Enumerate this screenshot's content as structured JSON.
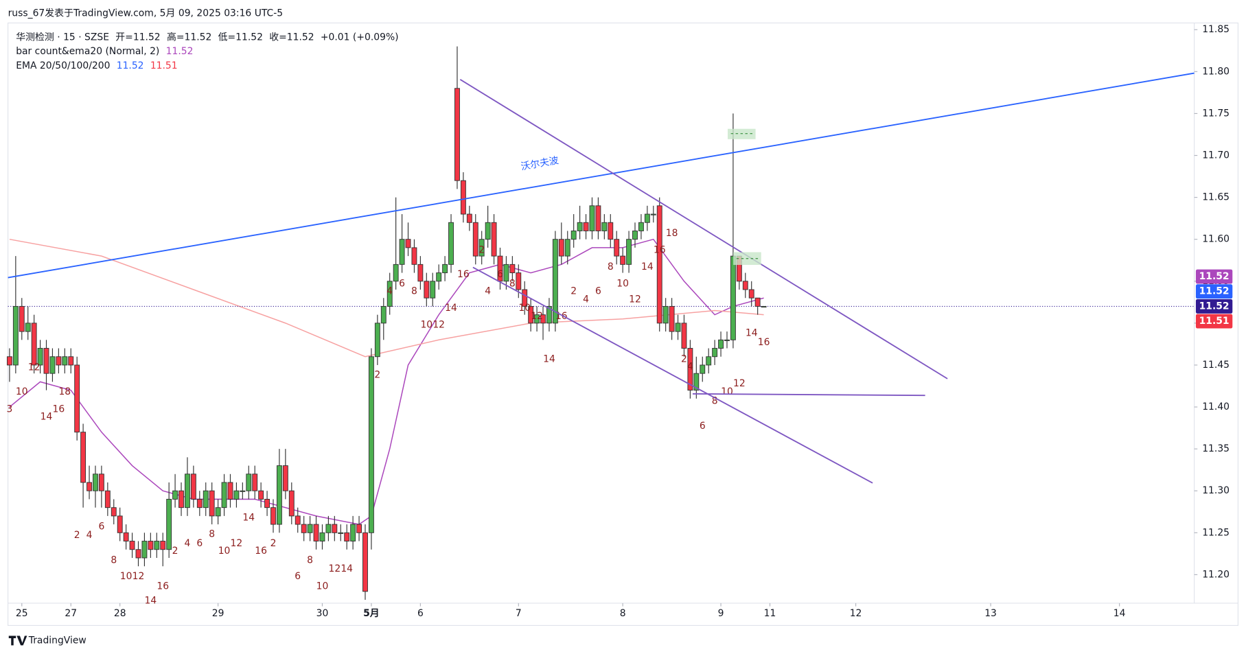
{
  "header": {
    "byline": "russ_67发表于TradingView.com, 5月 09, 2025 03:16 UTC-5"
  },
  "footer": {
    "brand": "TradingView"
  },
  "chart_data": {
    "type": "candlestick",
    "legend": {
      "symbol": "华测检测 · 15 · SZSE",
      "fields": [
        {
          "name": "开=",
          "value": 11.52
        },
        {
          "name": "高=",
          "value": 11.52
        },
        {
          "name": "低=",
          "value": 11.52
        },
        {
          "name": "收=",
          "value": 11.52
        }
      ],
      "change": "+0.01 (+0.09%)",
      "indicators": [
        {
          "name": "bar count&ema20 (Normal, 2)",
          "values": [
            11.52
          ],
          "colors": [
            "#ab47bc"
          ]
        },
        {
          "name": "EMA 20/50/100/200",
          "values": [
            11.52,
            11.51
          ],
          "colors": [
            "#2962ff",
            "#f23645"
          ]
        }
      ]
    },
    "up_color": "#4caf50",
    "down_color": "#f23645",
    "candles": [
      [
        11.46,
        11.47,
        11.43,
        11.45
      ],
      [
        11.45,
        11.58,
        11.44,
        11.52
      ],
      [
        11.52,
        11.53,
        11.48,
        11.49
      ],
      [
        11.49,
        11.52,
        11.48,
        11.5
      ],
      [
        11.5,
        11.51,
        11.44,
        11.45
      ],
      [
        11.45,
        11.48,
        11.44,
        11.47
      ],
      [
        11.47,
        11.48,
        11.42,
        11.44
      ],
      [
        11.44,
        11.47,
        11.43,
        11.46
      ],
      [
        11.46,
        11.47,
        11.44,
        11.45
      ],
      [
        11.45,
        11.47,
        11.44,
        11.46
      ],
      [
        11.46,
        11.47,
        11.44,
        11.45
      ],
      [
        11.45,
        11.46,
        11.36,
        11.37
      ],
      [
        11.37,
        11.38,
        11.28,
        11.31
      ],
      [
        11.31,
        11.33,
        11.29,
        11.3
      ],
      [
        11.3,
        11.33,
        11.28,
        11.32
      ],
      [
        11.32,
        11.33,
        11.28,
        11.3
      ],
      [
        11.3,
        11.31,
        11.27,
        11.28
      ],
      [
        11.28,
        11.29,
        11.26,
        11.27
      ],
      [
        11.27,
        11.28,
        11.24,
        11.25
      ],
      [
        11.25,
        11.26,
        11.23,
        11.24
      ],
      [
        11.24,
        11.25,
        11.22,
        11.23
      ],
      [
        11.23,
        11.24,
        11.21,
        11.22
      ],
      [
        11.22,
        11.25,
        11.21,
        11.24
      ],
      [
        11.24,
        11.25,
        11.22,
        11.23
      ],
      [
        11.23,
        11.25,
        11.22,
        11.24
      ],
      [
        11.24,
        11.25,
        11.21,
        11.23
      ],
      [
        11.23,
        11.31,
        11.22,
        11.29
      ],
      [
        11.29,
        11.32,
        11.28,
        11.3
      ],
      [
        11.3,
        11.31,
        11.27,
        11.28
      ],
      [
        11.28,
        11.34,
        11.27,
        11.32
      ],
      [
        11.32,
        11.33,
        11.28,
        11.29
      ],
      [
        11.29,
        11.3,
        11.27,
        11.28
      ],
      [
        11.28,
        11.31,
        11.27,
        11.3
      ],
      [
        11.3,
        11.31,
        11.26,
        11.27
      ],
      [
        11.27,
        11.29,
        11.26,
        11.28
      ],
      [
        11.28,
        11.32,
        11.27,
        11.31
      ],
      [
        11.31,
        11.32,
        11.28,
        11.29
      ],
      [
        11.29,
        11.31,
        11.28,
        11.3
      ],
      [
        11.3,
        11.31,
        11.29,
        11.3
      ],
      [
        11.3,
        11.33,
        11.29,
        11.32
      ],
      [
        11.32,
        11.33,
        11.29,
        11.3
      ],
      [
        11.3,
        11.31,
        11.28,
        11.29
      ],
      [
        11.29,
        11.3,
        11.27,
        11.28
      ],
      [
        11.28,
        11.29,
        11.25,
        11.26
      ],
      [
        11.26,
        11.35,
        11.25,
        11.33
      ],
      [
        11.33,
        11.35,
        11.29,
        11.3
      ],
      [
        11.3,
        11.31,
        11.26,
        11.27
      ],
      [
        11.27,
        11.28,
        11.25,
        11.26
      ],
      [
        11.26,
        11.27,
        11.24,
        11.25
      ],
      [
        11.25,
        11.27,
        11.24,
        11.26
      ],
      [
        11.26,
        11.27,
        11.23,
        11.24
      ],
      [
        11.24,
        11.26,
        11.23,
        11.25
      ],
      [
        11.25,
        11.27,
        11.24,
        11.26
      ],
      [
        11.26,
        11.27,
        11.24,
        11.25
      ],
      [
        11.25,
        11.26,
        11.24,
        11.25
      ],
      [
        11.25,
        11.26,
        11.23,
        11.24
      ],
      [
        11.24,
        11.27,
        11.23,
        11.26
      ],
      [
        11.26,
        11.27,
        11.24,
        11.25
      ],
      [
        11.25,
        11.26,
        11.17,
        11.18
      ],
      [
        11.25,
        11.47,
        11.23,
        11.46
      ],
      [
        11.46,
        11.51,
        11.45,
        11.5
      ],
      [
        11.5,
        11.53,
        11.48,
        11.52
      ],
      [
        11.52,
        11.56,
        11.51,
        11.55
      ],
      [
        11.55,
        11.65,
        11.54,
        11.57
      ],
      [
        11.57,
        11.63,
        11.56,
        11.6
      ],
      [
        11.6,
        11.62,
        11.58,
        11.59
      ],
      [
        11.59,
        11.6,
        11.56,
        11.57
      ],
      [
        11.57,
        11.58,
        11.54,
        11.55
      ],
      [
        11.55,
        11.56,
        11.52,
        11.53
      ],
      [
        11.53,
        11.56,
        11.52,
        11.55
      ],
      [
        11.55,
        11.57,
        11.54,
        11.56
      ],
      [
        11.56,
        11.58,
        11.55,
        11.57
      ],
      [
        11.57,
        11.63,
        11.56,
        11.62
      ],
      [
        11.78,
        11.83,
        11.66,
        11.67
      ],
      [
        11.67,
        11.68,
        11.62,
        11.63
      ],
      [
        11.63,
        11.64,
        11.61,
        11.62
      ],
      [
        11.62,
        11.63,
        11.57,
        11.58
      ],
      [
        11.58,
        11.61,
        11.57,
        11.6
      ],
      [
        11.6,
        11.64,
        11.59,
        11.62
      ],
      [
        11.62,
        11.63,
        11.57,
        11.58
      ],
      [
        11.58,
        11.59,
        11.54,
        11.55
      ],
      [
        11.55,
        11.58,
        11.54,
        11.57
      ],
      [
        11.57,
        11.58,
        11.55,
        11.56
      ],
      [
        11.56,
        11.57,
        11.53,
        11.54
      ],
      [
        11.54,
        11.55,
        11.51,
        11.52
      ],
      [
        11.52,
        11.53,
        11.49,
        11.5
      ],
      [
        11.5,
        11.52,
        11.49,
        11.51
      ],
      [
        11.51,
        11.52,
        11.48,
        11.5
      ],
      [
        11.5,
        11.53,
        11.49,
        11.52
      ],
      [
        11.5,
        11.61,
        11.49,
        11.6
      ],
      [
        11.6,
        11.62,
        11.57,
        11.58
      ],
      [
        11.58,
        11.61,
        11.57,
        11.6
      ],
      [
        11.6,
        11.63,
        11.59,
        11.61
      ],
      [
        11.61,
        11.64,
        11.6,
        11.62
      ],
      [
        11.62,
        11.63,
        11.6,
        11.61
      ],
      [
        11.61,
        11.65,
        11.6,
        11.64
      ],
      [
        11.64,
        11.65,
        11.6,
        11.61
      ],
      [
        11.61,
        11.63,
        11.6,
        11.62
      ],
      [
        11.62,
        11.63,
        11.59,
        11.6
      ],
      [
        11.6,
        11.61,
        11.57,
        11.58
      ],
      [
        11.58,
        11.59,
        11.56,
        11.57
      ],
      [
        11.57,
        11.61,
        11.56,
        11.6
      ],
      [
        11.6,
        11.62,
        11.59,
        11.61
      ],
      [
        11.61,
        11.63,
        11.6,
        11.62
      ],
      [
        11.62,
        11.64,
        11.61,
        11.63
      ],
      [
        11.63,
        11.64,
        11.62,
        11.63
      ],
      [
        11.64,
        11.65,
        11.49,
        11.5
      ],
      [
        11.5,
        11.53,
        11.49,
        11.52
      ],
      [
        11.52,
        11.53,
        11.48,
        11.49
      ],
      [
        11.49,
        11.51,
        11.48,
        11.5
      ],
      [
        11.5,
        11.51,
        11.46,
        11.47
      ],
      [
        11.47,
        11.48,
        11.41,
        11.42
      ],
      [
        11.42,
        11.46,
        11.41,
        11.44
      ],
      [
        11.44,
        11.46,
        11.43,
        11.45
      ],
      [
        11.45,
        11.47,
        11.44,
        11.46
      ],
      [
        11.46,
        11.48,
        11.45,
        11.47
      ],
      [
        11.47,
        11.49,
        11.46,
        11.48
      ],
      [
        11.48,
        11.49,
        11.47,
        11.48
      ],
      [
        11.48,
        11.75,
        11.47,
        11.58
      ],
      [
        11.58,
        11.58,
        11.54,
        11.55
      ],
      [
        11.55,
        11.56,
        11.53,
        11.54
      ],
      [
        11.54,
        11.55,
        11.52,
        11.53
      ],
      [
        11.53,
        11.53,
        11.51,
        11.52
      ],
      [
        11.52,
        11.52,
        11.52,
        11.52
      ]
    ],
    "overlays": [
      {
        "color": "#ab47bc",
        "x": [
          0,
          5,
          10,
          15,
          20,
          25,
          30,
          40,
          50,
          57,
          59,
          62,
          65,
          70,
          75,
          80,
          85,
          90,
          95,
          100,
          105,
          110,
          115,
          118,
          123
        ],
        "values": [
          11.4,
          11.43,
          11.42,
          11.37,
          11.33,
          11.3,
          11.29,
          11.29,
          11.27,
          11.26,
          11.27,
          11.35,
          11.45,
          11.51,
          11.56,
          11.57,
          11.56,
          11.57,
          11.59,
          11.59,
          11.6,
          11.55,
          11.51,
          11.52,
          11.53
        ]
      },
      {
        "color": "#f7a1a1",
        "x": [
          0,
          15,
          30,
          45,
          58,
          70,
          85,
          100,
          115,
          123
        ],
        "values": [
          11.6,
          11.58,
          11.54,
          11.5,
          11.46,
          11.48,
          11.5,
          11.505,
          11.515,
          11.51
        ]
      }
    ],
    "count_labels": {
      "color": "#8b1c1c",
      "x": [
        0,
        2,
        4,
        6,
        8,
        9,
        11,
        13,
        15,
        17,
        19,
        21,
        23,
        25,
        27,
        29,
        31,
        33,
        35,
        37,
        39,
        41,
        43,
        47,
        49,
        51,
        53,
        55,
        60,
        62,
        64,
        66,
        68,
        70,
        72,
        74,
        77,
        78,
        80,
        82,
        84,
        86,
        88,
        90,
        92,
        94,
        96,
        98,
        100,
        102,
        104,
        106,
        108,
        110,
        111,
        113,
        115,
        117,
        119,
        121,
        123
      ],
      "y": [
        11.397,
        11.418,
        11.447,
        11.388,
        11.397,
        11.418,
        11.247,
        11.247,
        11.257,
        11.217,
        11.198,
        11.198,
        11.169,
        11.186,
        11.228,
        11.237,
        11.237,
        11.248,
        11.228,
        11.237,
        11.268,
        11.228,
        11.237,
        11.198,
        11.217,
        11.186,
        11.207,
        11.207,
        11.438,
        11.538,
        11.547,
        11.538,
        11.498,
        11.498,
        11.518,
        11.558,
        11.587,
        11.538,
        11.558,
        11.547,
        11.518,
        11.508,
        11.457,
        11.508,
        11.538,
        11.528,
        11.538,
        11.567,
        11.547,
        11.528,
        11.567,
        11.587,
        11.607,
        11.457,
        11.448,
        11.377,
        11.407,
        11.418,
        11.428,
        11.488,
        11.477
      ],
      "labels": [
        "3",
        "10",
        "12",
        "14",
        "16",
        "18",
        "2",
        "4",
        "6",
        "8",
        "10",
        "12",
        "14",
        "16",
        "2",
        "4",
        "6",
        "8",
        "10",
        "12",
        "14",
        "16",
        "2",
        "6",
        "8",
        "10",
        "12",
        "14",
        "2",
        "4",
        "6",
        "8",
        "10",
        "12",
        "14",
        "16",
        "2",
        "4",
        "6",
        "8",
        "10",
        "12",
        "14",
        "16",
        "2",
        "4",
        "6",
        "8",
        "10",
        "12",
        "14",
        "16",
        "18",
        "2",
        "4",
        "6",
        "8",
        "10",
        "12",
        "14",
        "16"
      ]
    },
    "annotations": [
      {
        "text": "沃尔夫波",
        "color": "#2962ff"
      }
    ],
    "xlim": [
      -0.26,
      193.2
    ],
    "xticks": [
      {
        "value": 2,
        "label": "25"
      },
      {
        "value": 10,
        "label": "27"
      },
      {
        "value": 18,
        "label": "28"
      },
      {
        "value": 34,
        "label": "29"
      },
      {
        "value": 51,
        "label": "30"
      },
      {
        "value": 59,
        "label": "5月"
      },
      {
        "value": 67,
        "label": "6"
      },
      {
        "value": 83,
        "label": "7"
      },
      {
        "value": 100,
        "label": "8"
      },
      {
        "value": 116,
        "label": "9"
      },
      {
        "value": 124,
        "label": "11"
      },
      {
        "value": 138,
        "label": "12"
      },
      {
        "value": 160,
        "label": "13"
      },
      {
        "value": 181,
        "label": "14"
      }
    ],
    "ylim": [
      11.166,
      11.858
    ],
    "yticks": [
      {
        "value": 11.2,
        "label": "11.20"
      },
      11.25,
      {
        "value": 11.3,
        "label": "11.30"
      },
      11.35,
      {
        "value": 11.4,
        "label": "11.40"
      },
      11.45,
      {
        "value": 11.5,
        "label": "11.50"
      },
      11.55,
      {
        "value": 11.6,
        "label": "11.60"
      },
      11.65,
      {
        "value": 11.7,
        "label": "11.70"
      },
      11.75,
      {
        "value": 11.8,
        "label": "11.80"
      },
      11.85
    ],
    "price_badges": [
      {
        "value": 11.52,
        "color": "#ab47bc"
      },
      {
        "value": 11.52,
        "color": "#2962ff"
      },
      {
        "value": 11.52,
        "color": "#311b92"
      },
      {
        "value": 11.51,
        "color": "#f23645"
      }
    ]
  }
}
